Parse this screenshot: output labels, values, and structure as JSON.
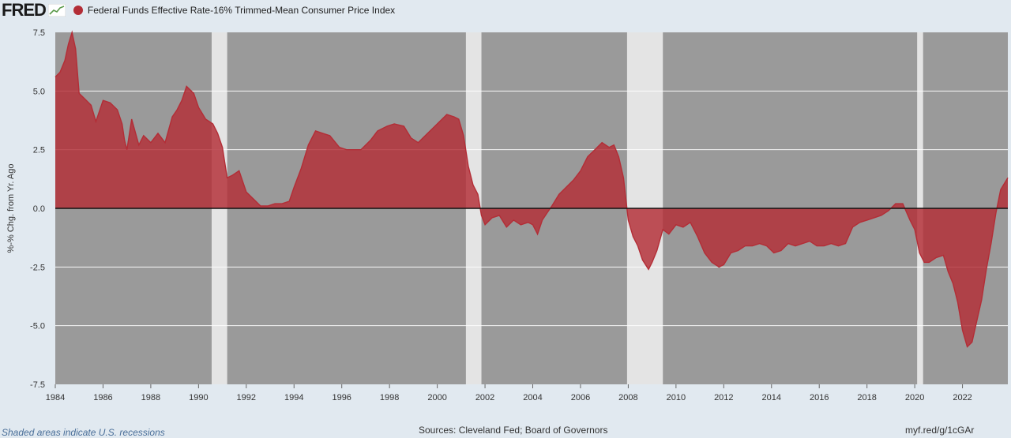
{
  "header": {
    "logo": "FRED",
    "legend_label": "Federal Funds Effective Rate-16% Trimmed-Mean Consumer Price Index",
    "legend_color": "#b32d36"
  },
  "footer": {
    "note": "Shaded areas indicate U.S. recessions",
    "sources": "Sources: Cleveland Fed; Board of Governors",
    "link": "myf.red/g/1cGAr"
  },
  "chart_data": {
    "type": "area",
    "title": "Federal Funds Effective Rate-16% Trimmed-Mean Consumer Price Index",
    "ylabel": "%-% Chg. from Yr. Ago",
    "xlabel": "",
    "xlim": [
      1984,
      2023.9
    ],
    "ylim": [
      -7.5,
      7.5
    ],
    "x_ticks": [
      "1984",
      "1986",
      "1988",
      "1990",
      "1992",
      "1994",
      "1996",
      "1998",
      "2000",
      "2002",
      "2004",
      "2006",
      "2008",
      "2010",
      "2012",
      "2014",
      "2016",
      "2018",
      "2020",
      "2022"
    ],
    "y_ticks": [
      "7.5",
      "5.0",
      "2.5",
      "0.0",
      "-2.5",
      "-5.0",
      "-7.5"
    ],
    "zero_line": true,
    "grid": true,
    "colors": {
      "fill": "#b32d36",
      "plot_bg": "#9a9a9a",
      "recession": "#e4e4e4",
      "grid": "#ffffff"
    },
    "recessions": [
      [
        1990.55,
        1991.2
      ],
      [
        2001.2,
        2001.85
      ],
      [
        2007.95,
        2009.45
      ],
      [
        2020.1,
        2020.35
      ]
    ],
    "series": [
      {
        "name": "Federal Funds Effective Rate-16% Trimmed-Mean Consumer Price Index",
        "x": [
          1984.0,
          1984.2,
          1984.4,
          1984.55,
          1984.7,
          1984.85,
          1985.0,
          1985.2,
          1985.5,
          1985.7,
          1986.0,
          1986.3,
          1986.6,
          1986.8,
          1986.9,
          1987.0,
          1987.2,
          1987.5,
          1987.7,
          1988.0,
          1988.3,
          1988.6,
          1988.9,
          1989.1,
          1989.3,
          1989.5,
          1989.8,
          1990.0,
          1990.3,
          1990.6,
          1990.8,
          1991.0,
          1991.2,
          1991.4,
          1991.7,
          1992.0,
          1992.3,
          1992.6,
          1992.9,
          1993.2,
          1993.5,
          1993.8,
          1994.0,
          1994.3,
          1994.6,
          1994.9,
          1995.2,
          1995.5,
          1995.9,
          1996.2,
          1996.5,
          1996.8,
          1997.2,
          1997.5,
          1997.9,
          1998.2,
          1998.6,
          1998.9,
          1999.2,
          1999.5,
          1999.8,
          2000.1,
          2000.4,
          2000.7,
          2000.9,
          2001.1,
          2001.3,
          2001.5,
          2001.7,
          2001.85,
          2002.0,
          2002.3,
          2002.6,
          2002.9,
          2003.2,
          2003.5,
          2003.8,
          2004.0,
          2004.2,
          2004.4,
          2004.6,
          2004.8,
          2005.1,
          2005.4,
          2005.7,
          2006.0,
          2006.3,
          2006.6,
          2006.9,
          2007.2,
          2007.4,
          2007.6,
          2007.8,
          2008.0,
          2008.2,
          2008.4,
          2008.6,
          2008.85,
          2009.0,
          2009.2,
          2009.45,
          2009.7,
          2010.0,
          2010.3,
          2010.6,
          2010.9,
          2011.2,
          2011.5,
          2011.8,
          2012.0,
          2012.3,
          2012.6,
          2012.9,
          2013.2,
          2013.5,
          2013.8,
          2014.1,
          2014.4,
          2014.7,
          2015.0,
          2015.3,
          2015.6,
          2015.9,
          2016.2,
          2016.5,
          2016.8,
          2017.1,
          2017.4,
          2017.7,
          2018.0,
          2018.3,
          2018.6,
          2018.9,
          2019.2,
          2019.5,
          2019.8,
          2020.0,
          2020.2,
          2020.4,
          2020.6,
          2020.9,
          2021.2,
          2021.4,
          2021.6,
          2021.8,
          2022.0,
          2022.2,
          2022.4,
          2022.6,
          2022.8,
          2023.0,
          2023.2,
          2023.4,
          2023.6,
          2023.9
        ],
        "values": [
          5.6,
          5.8,
          6.3,
          7.0,
          7.5,
          6.8,
          4.9,
          4.7,
          4.4,
          3.7,
          4.6,
          4.5,
          4.2,
          3.6,
          2.9,
          2.5,
          3.8,
          2.7,
          3.1,
          2.8,
          3.2,
          2.8,
          3.9,
          4.2,
          4.6,
          5.2,
          4.9,
          4.3,
          3.8,
          3.6,
          3.2,
          2.6,
          1.3,
          1.4,
          1.6,
          0.7,
          0.4,
          0.1,
          0.1,
          0.2,
          0.2,
          0.3,
          0.9,
          1.7,
          2.7,
          3.3,
          3.2,
          3.1,
          2.6,
          2.5,
          2.5,
          2.5,
          2.9,
          3.3,
          3.5,
          3.6,
          3.5,
          3.0,
          2.8,
          3.1,
          3.4,
          3.7,
          4.0,
          3.9,
          3.8,
          3.1,
          1.8,
          1.0,
          0.6,
          -0.3,
          -0.7,
          -0.4,
          -0.3,
          -0.8,
          -0.5,
          -0.7,
          -0.6,
          -0.7,
          -1.1,
          -0.5,
          -0.2,
          0.1,
          0.6,
          0.9,
          1.2,
          1.6,
          2.2,
          2.5,
          2.8,
          2.6,
          2.7,
          2.2,
          1.3,
          -0.5,
          -1.2,
          -1.6,
          -2.2,
          -2.6,
          -2.3,
          -1.8,
          -0.9,
          -1.1,
          -0.7,
          -0.8,
          -0.6,
          -1.2,
          -1.9,
          -2.3,
          -2.5,
          -2.4,
          -1.9,
          -1.8,
          -1.6,
          -1.6,
          -1.5,
          -1.6,
          -1.9,
          -1.8,
          -1.5,
          -1.6,
          -1.5,
          -1.4,
          -1.6,
          -1.6,
          -1.5,
          -1.6,
          -1.5,
          -0.8,
          -0.6,
          -0.5,
          -0.4,
          -0.3,
          -0.1,
          0.2,
          0.2,
          -0.5,
          -0.9,
          -1.9,
          -2.3,
          -2.3,
          -2.1,
          -2.0,
          -2.7,
          -3.2,
          -4.0,
          -5.2,
          -5.9,
          -5.7,
          -4.8,
          -3.9,
          -2.6,
          -1.5,
          -0.2,
          0.8,
          1.3
        ]
      }
    ]
  }
}
